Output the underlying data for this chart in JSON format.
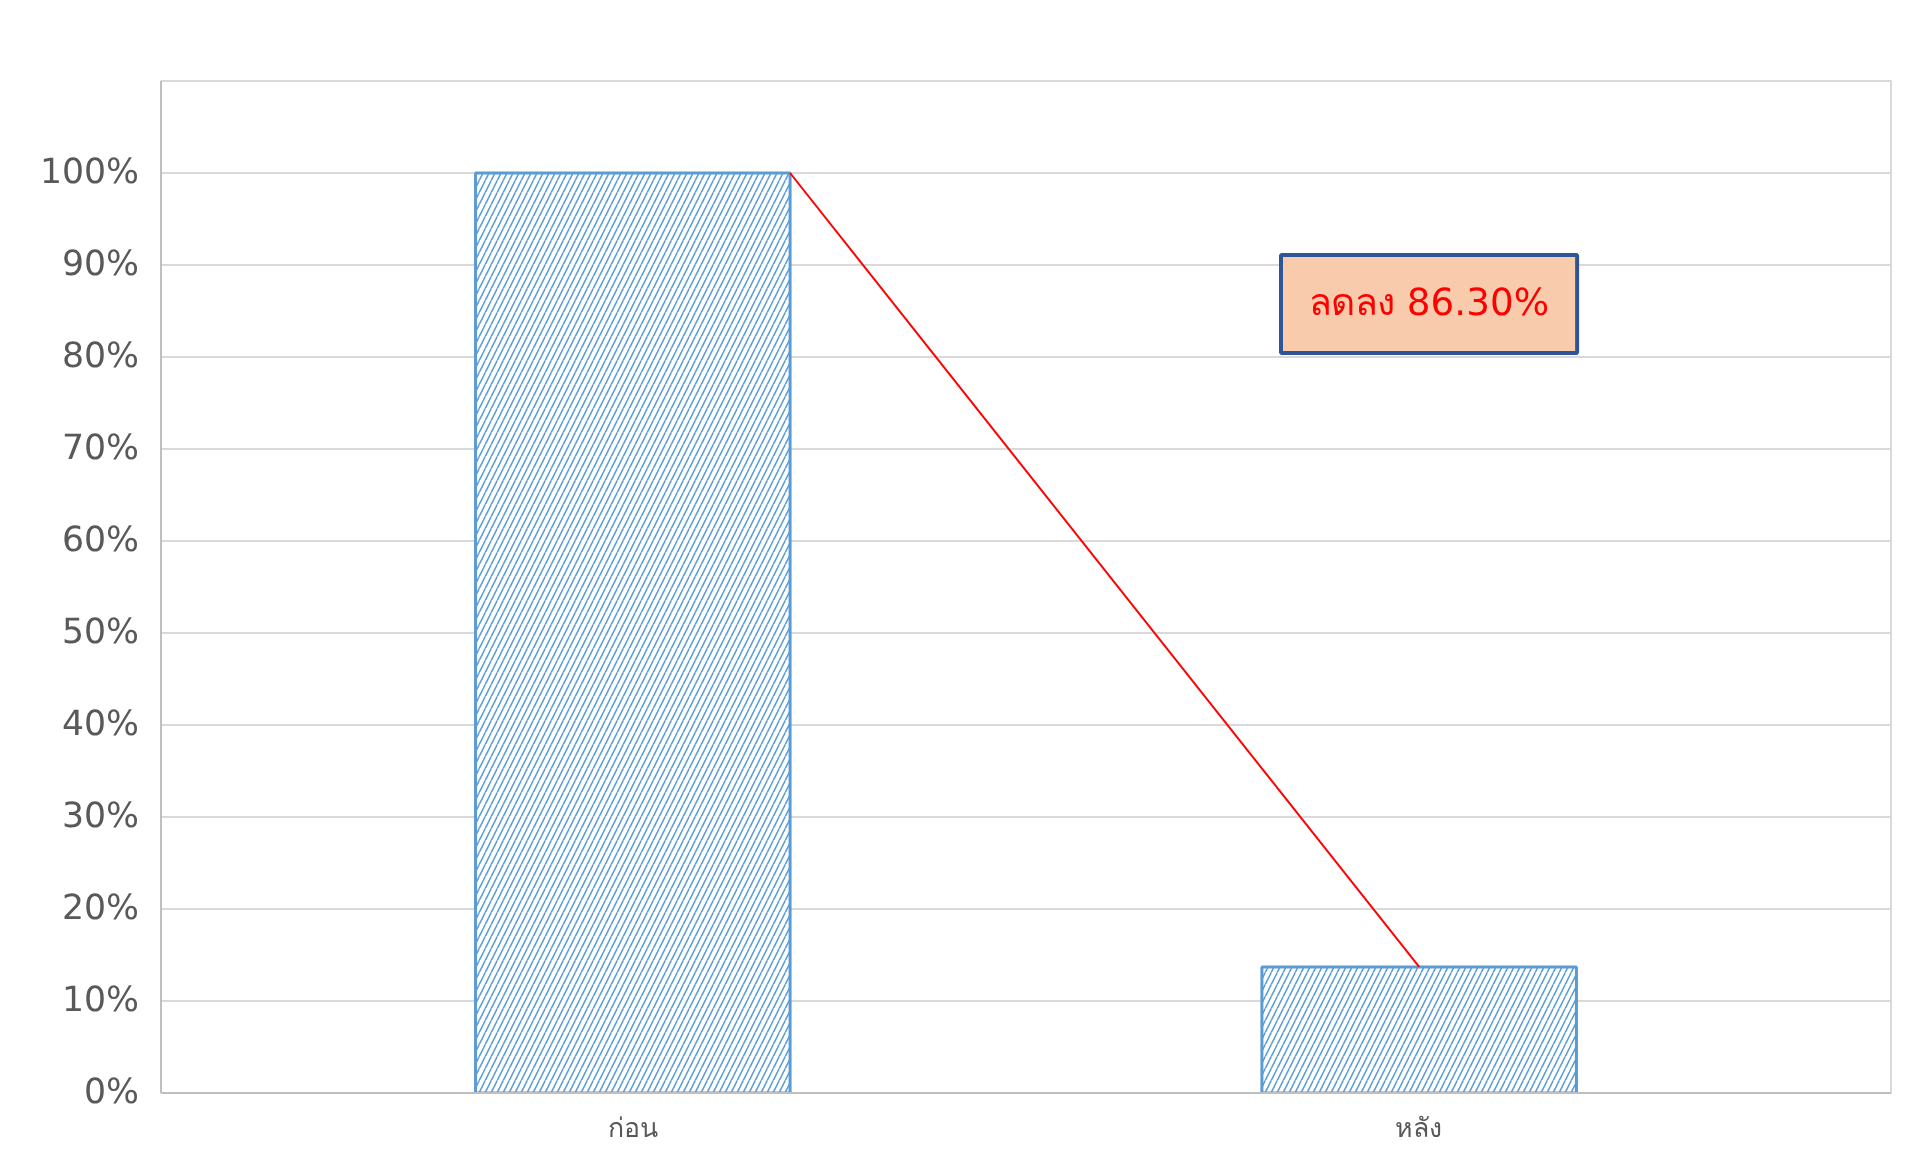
{
  "chart_data": {
    "type": "bar",
    "categories": [
      "ก่อน",
      "หลัง"
    ],
    "values": [
      100,
      13.7
    ],
    "color": "#5b9bd5",
    "ylim": [
      0,
      110
    ],
    "yticks": [
      {
        "value": 0,
        "label": "0%"
      },
      {
        "value": 10,
        "label": "10%"
      },
      {
        "value": 20,
        "label": "20%"
      },
      {
        "value": 30,
        "label": "30%"
      },
      {
        "value": 40,
        "label": "40%"
      },
      {
        "value": 50,
        "label": "50%"
      },
      {
        "value": 60,
        "label": "60%"
      },
      {
        "value": 70,
        "label": "70%"
      },
      {
        "value": 80,
        "label": "80%"
      },
      {
        "value": 90,
        "label": "90%"
      },
      {
        "value": 100,
        "label": "100%"
      }
    ],
    "grid": "y",
    "annotations": [
      "ลดลง 86.30%"
    ]
  }
}
